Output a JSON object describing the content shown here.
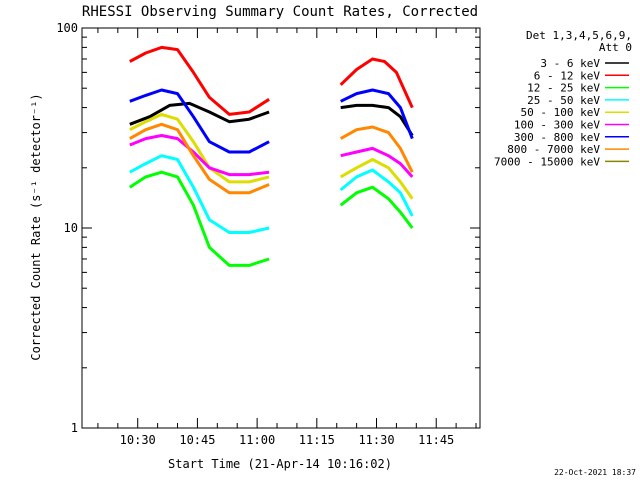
{
  "chart_data": {
    "type": "line",
    "title": "RHESSI Observing Summary Count Rates, Corrected",
    "ylabel": "Corrected Count Rate (s⁻¹ detector⁻¹)",
    "xlabel": "Start Time (21-Apr-14 10:16:02)",
    "y_scale": "log",
    "ylim": [
      1,
      100
    ],
    "xlim": [
      "10:16",
      "11:56"
    ],
    "x_tick_labels": [
      "10:30",
      "10:45",
      "11:00",
      "11:15",
      "11:30",
      "11:45"
    ],
    "y_tick_labels": [
      "1",
      "10",
      "100"
    ],
    "legend_title": [
      "Det 1,3,4,5,6,9,",
      "Att 0"
    ],
    "legend_position": "right",
    "footer": "22-Oct-2021 18:37",
    "series": [
      {
        "name": "3 - 6 keV",
        "color": "#000000",
        "x": [
          "10:28",
          "10:33",
          "10:38",
          "10:43",
          "10:48",
          "10:53",
          "10:58",
          "11:03",
          "11:21",
          "11:25",
          "11:29",
          "11:33",
          "11:36",
          "11:39"
        ],
        "y": [
          33,
          36,
          41,
          42,
          38,
          34,
          35,
          38,
          40,
          41,
          41,
          40,
          36,
          29
        ]
      },
      {
        "name": "6 - 12 keV",
        "color": "#ff0000",
        "x": [
          "10:28",
          "10:32",
          "10:36",
          "10:40",
          "10:44",
          "10:48",
          "10:53",
          "10:58",
          "11:03",
          "11:21",
          "11:25",
          "11:29",
          "11:32",
          "11:35",
          "11:39"
        ],
        "y": [
          68,
          75,
          80,
          78,
          60,
          45,
          37,
          38,
          44,
          52,
          62,
          70,
          68,
          60,
          40
        ]
      },
      {
        "name": "12 - 25 keV",
        "color": "#00ff00",
        "x": [
          "10:28",
          "10:32",
          "10:36",
          "10:40",
          "10:44",
          "10:48",
          "10:53",
          "10:58",
          "11:03",
          "11:21",
          "11:25",
          "11:29",
          "11:33",
          "11:36",
          "11:39"
        ],
        "y": [
          16,
          18,
          19,
          18,
          13,
          8,
          6.5,
          6.5,
          7,
          13,
          15,
          16,
          14,
          12,
          10
        ]
      },
      {
        "name": "25 - 50 keV",
        "color": "#00ffff",
        "x": [
          "10:28",
          "10:32",
          "10:36",
          "10:40",
          "10:44",
          "10:48",
          "10:53",
          "10:58",
          "11:03",
          "11:21",
          "11:25",
          "11:29",
          "11:33",
          "11:36",
          "11:39"
        ],
        "y": [
          19,
          21,
          23,
          22,
          16,
          11,
          9.5,
          9.5,
          10,
          15.5,
          18,
          19.5,
          17,
          15,
          11.5
        ]
      },
      {
        "name": "50 - 100 keV",
        "color": "#dddd00",
        "x": [
          "10:28",
          "10:32",
          "10:36",
          "10:40",
          "10:44",
          "10:48",
          "10:53",
          "10:58",
          "11:03",
          "11:21",
          "11:25",
          "11:29",
          "11:33",
          "11:36",
          "11:39"
        ],
        "y": [
          31,
          34,
          37,
          35,
          27,
          20,
          17,
          17,
          18,
          18,
          20,
          22,
          20,
          17,
          14
        ]
      },
      {
        "name": "100 - 300 keV",
        "color": "#ff00ff",
        "x": [
          "10:28",
          "10:32",
          "10:36",
          "10:40",
          "10:44",
          "10:48",
          "10:53",
          "10:58",
          "11:03",
          "11:21",
          "11:25",
          "11:29",
          "11:33",
          "11:36",
          "11:39"
        ],
        "y": [
          26,
          28,
          29,
          28,
          24,
          20,
          18.5,
          18.5,
          19,
          23,
          24,
          25,
          23,
          21,
          18
        ]
      },
      {
        "name": "300 - 800 keV",
        "color": "#0000ff",
        "x": [
          "10:28",
          "10:32",
          "10:36",
          "10:40",
          "10:44",
          "10:48",
          "10:53",
          "10:58",
          "11:03",
          "11:21",
          "11:25",
          "11:29",
          "11:33",
          "11:36",
          "11:39"
        ],
        "y": [
          43,
          46,
          49,
          47,
          36,
          27,
          24,
          24,
          27,
          43,
          47,
          49,
          47,
          40,
          28
        ]
      },
      {
        "name": "800 - 7000 keV",
        "color": "#ff8800",
        "x": [
          "10:28",
          "10:32",
          "10:36",
          "10:40",
          "10:44",
          "10:48",
          "10:53",
          "10:58",
          "11:03",
          "11:21",
          "11:25",
          "11:29",
          "11:33",
          "11:36",
          "11:39"
        ],
        "y": [
          28,
          31,
          33,
          31,
          23,
          17.5,
          15,
          15,
          16.5,
          28,
          31,
          32,
          30,
          25,
          19
        ]
      },
      {
        "name": "7000 - 15000 keV",
        "color": "#888800",
        "x": [],
        "y": []
      }
    ]
  }
}
